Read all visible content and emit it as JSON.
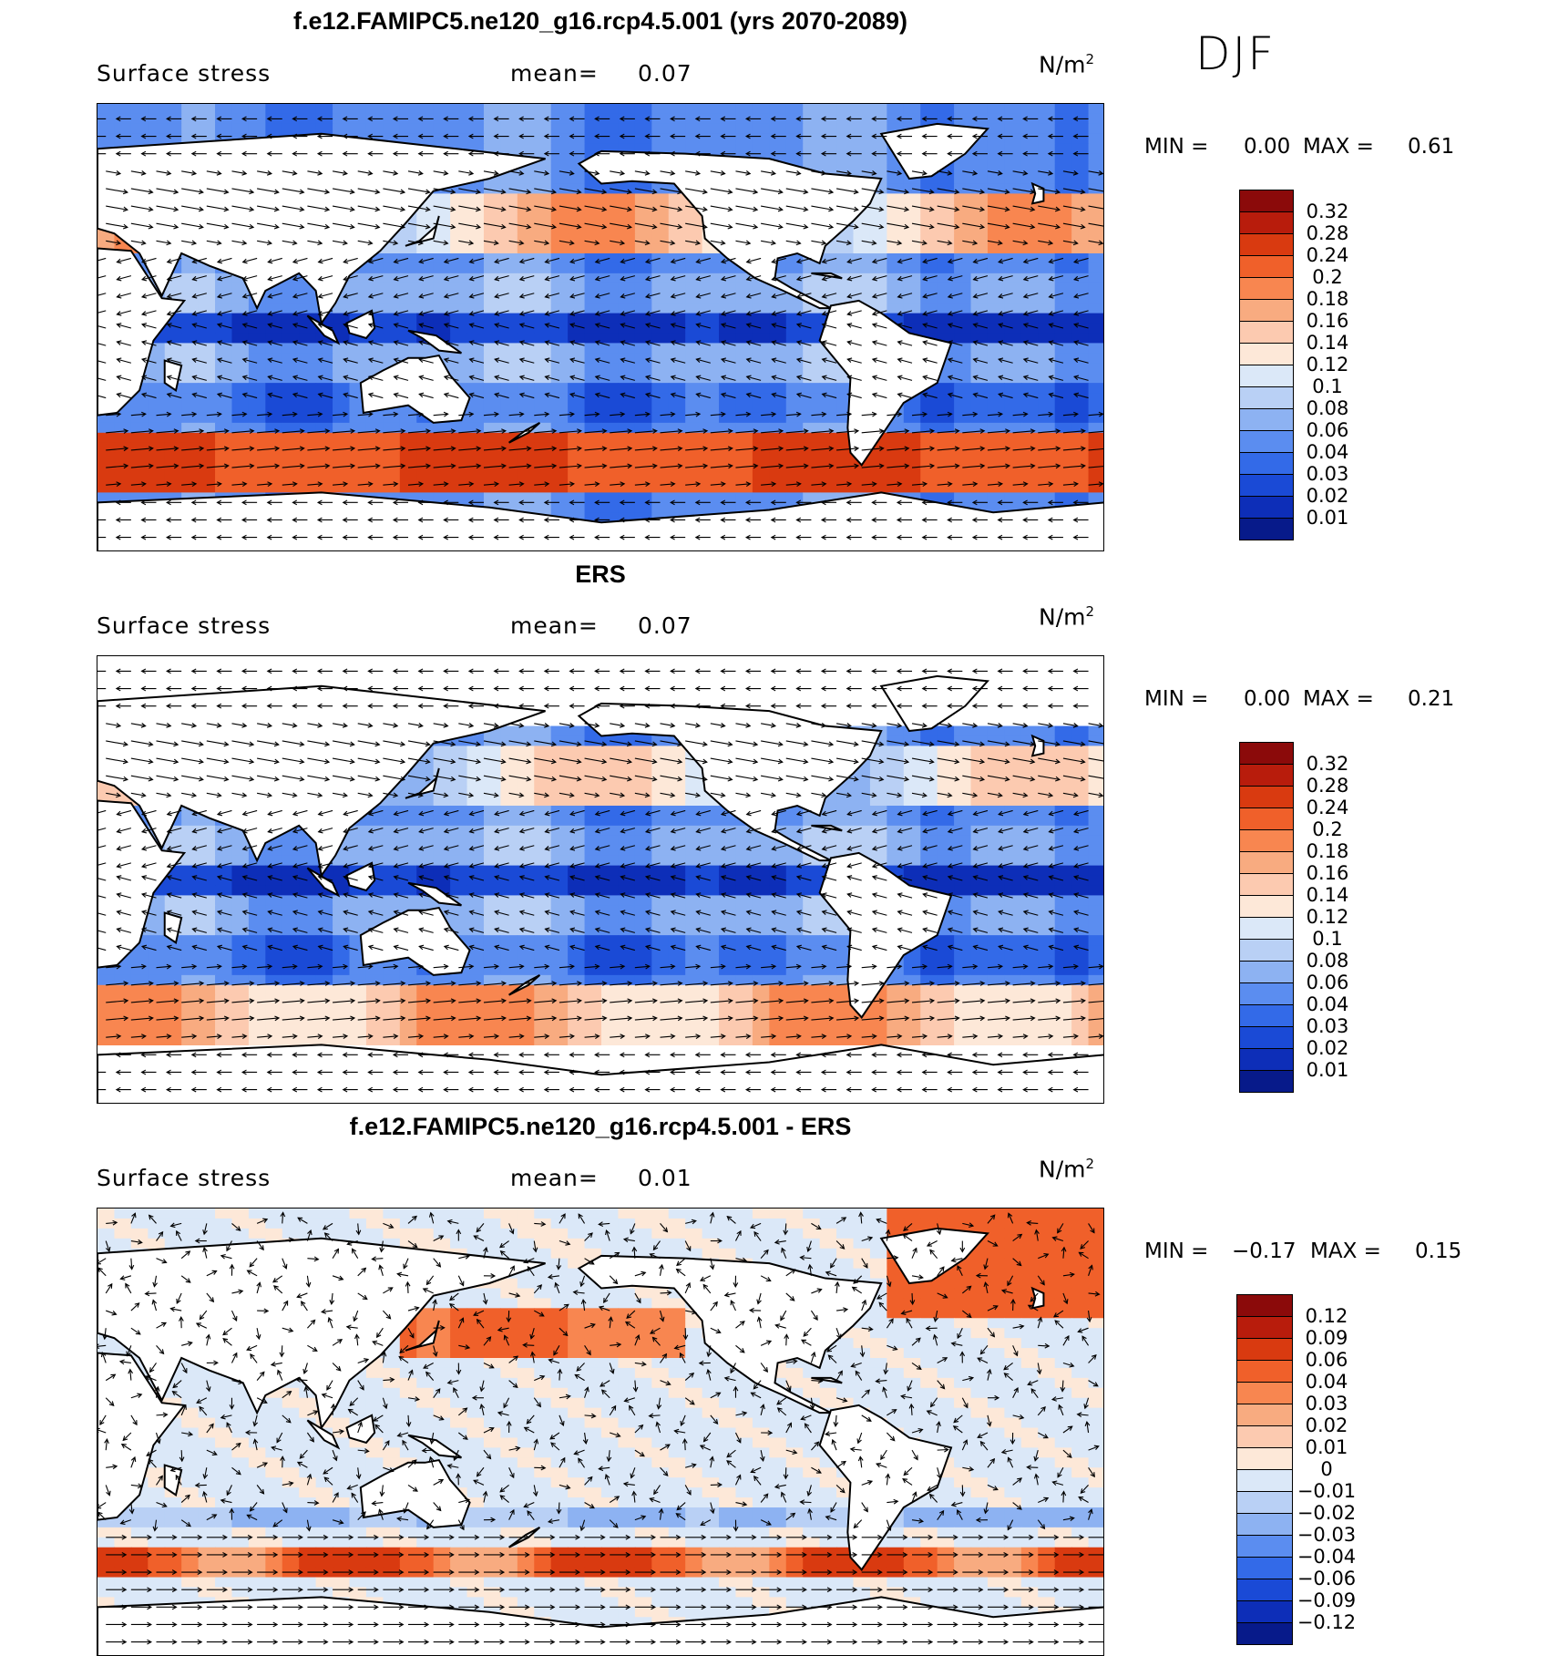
{
  "season": "DJF",
  "units_label": "N/m",
  "units_power": "2",
  "panels": [
    {
      "title": "f.e12.FAMIPC5.ne120_g16.rcp4.5.001 (yrs 2070-2089)",
      "variable": "Surface stress",
      "mean_label": "mean=",
      "mean_value": "0.07",
      "min_label": "MIN =",
      "min_value": "0.00",
      "max_label": "MAX =",
      "max_value": "0.61",
      "colorbar_labels": [
        "0.32",
        "0.28",
        "0.24",
        "0.2",
        "0.18",
        "0.16",
        "0.14",
        "0.12",
        "0.1",
        "0.08",
        "0.06",
        "0.04",
        "0.03",
        "0.02",
        "0.01"
      ],
      "colorbar_colors": [
        "#8b0a0a",
        "#b81c0c",
        "#d93a10",
        "#f0602a",
        "#f88650",
        "#f8ab80",
        "#fccab0",
        "#fde8d8",
        "#dbe8f8",
        "#b9d0f5",
        "#8db2f2",
        "#5b8df0",
        "#336ae8",
        "#1a4ad6",
        "#0d2eb8",
        "#071a8a"
      ]
    },
    {
      "title": "ERS",
      "variable": "Surface stress",
      "mean_label": "mean=",
      "mean_value": "0.07",
      "min_label": "MIN =",
      "min_value": "0.00",
      "max_label": "MAX =",
      "max_value": "0.21",
      "colorbar_labels": [
        "0.32",
        "0.28",
        "0.24",
        "0.2",
        "0.18",
        "0.16",
        "0.14",
        "0.12",
        "0.1",
        "0.08",
        "0.06",
        "0.04",
        "0.03",
        "0.02",
        "0.01"
      ],
      "colorbar_colors": [
        "#8b0a0a",
        "#b81c0c",
        "#d93a10",
        "#f0602a",
        "#f88650",
        "#f8ab80",
        "#fccab0",
        "#fde8d8",
        "#dbe8f8",
        "#b9d0f5",
        "#8db2f2",
        "#5b8df0",
        "#336ae8",
        "#1a4ad6",
        "#0d2eb8",
        "#071a8a"
      ]
    },
    {
      "title": "f.e12.FAMIPC5.ne120_g16.rcp4.5.001 - ERS",
      "variable": "Surface stress",
      "mean_label": "mean=",
      "mean_value": "0.01",
      "min_label": "MIN =",
      "min_value": "−0.17",
      "max_label": "MAX =",
      "max_value": "0.15",
      "colorbar_labels": [
        "0.12",
        "0.09",
        "0.06",
        "0.04",
        "0.03",
        "0.02",
        "0.01",
        "0",
        "−0.01",
        "−0.02",
        "−0.03",
        "−0.04",
        "−0.06",
        "−0.09",
        "−0.12"
      ],
      "colorbar_colors": [
        "#8b0a0a",
        "#b81c0c",
        "#d93a10",
        "#f0602a",
        "#f88650",
        "#f8ab80",
        "#fccab0",
        "#fde8d8",
        "#dbe8f8",
        "#b9d0f5",
        "#8db2f2",
        "#5b8df0",
        "#336ae8",
        "#1a4ad6",
        "#0d2eb8",
        "#071a8a"
      ]
    }
  ],
  "chart_data": [
    {
      "type": "heatmap",
      "title": "f.e12.FAMIPC5.ne120_g16.rcp4.5.001 (yrs 2070-2089)",
      "variable": "Surface stress",
      "units": "N/m2",
      "season": "DJF",
      "mean": 0.07,
      "min": 0.0,
      "max": 0.61,
      "contour_levels": [
        0.01,
        0.02,
        0.03,
        0.04,
        0.06,
        0.08,
        0.1,
        0.12,
        0.14,
        0.16,
        0.18,
        0.2,
        0.24,
        0.28,
        0.32
      ],
      "overlay": "wind stress vectors",
      "map": "global, Pacific-centered"
    },
    {
      "type": "heatmap",
      "title": "ERS",
      "variable": "Surface stress",
      "units": "N/m2",
      "season": "DJF",
      "mean": 0.07,
      "min": 0.0,
      "max": 0.21,
      "contour_levels": [
        0.01,
        0.02,
        0.03,
        0.04,
        0.06,
        0.08,
        0.1,
        0.12,
        0.14,
        0.16,
        0.18,
        0.2,
        0.24,
        0.28,
        0.32
      ],
      "overlay": "wind stress vectors",
      "map": "global, Pacific-centered"
    },
    {
      "type": "heatmap",
      "title": "f.e12.FAMIPC5.ne120_g16.rcp4.5.001 - ERS",
      "variable": "Surface stress",
      "units": "N/m2",
      "season": "DJF",
      "mean": 0.01,
      "min": -0.17,
      "max": 0.15,
      "contour_levels": [
        -0.12,
        -0.09,
        -0.06,
        -0.04,
        -0.03,
        -0.02,
        -0.01,
        0,
        0.01,
        0.02,
        0.03,
        0.04,
        0.06,
        0.09,
        0.12
      ],
      "overlay": "wind stress vectors",
      "map": "global, Pacific-centered"
    }
  ]
}
